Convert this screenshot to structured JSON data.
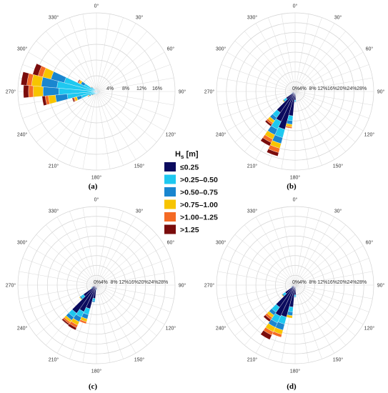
{
  "figure": {
    "legend": {
      "title_main": "H",
      "title_sub": "s",
      "title_unit": " [m]",
      "colors": [
        "#0b0b5e",
        "#1ec8f0",
        "#1a86cf",
        "#f7c400",
        "#f46a25",
        "#7a0c0c"
      ],
      "icon_names": [
        "legend-swatch-le025",
        "legend-swatch-025-050",
        "legend-swatch-050-075",
        "legend-swatch-075-100",
        "legend-swatch-100-125",
        "legend-swatch-gt125"
      ]
    }
  },
  "chart_data": [
    {
      "type": "polar-stacked-bar",
      "panel": "(a)",
      "angle_labels": [
        "0°",
        "30°",
        "60°",
        "90°",
        "120°",
        "150°",
        "180°",
        "210°",
        "240°",
        "270°",
        "300°",
        "330°"
      ],
      "radial_ticks": [
        "4%",
        "8%",
        "12%",
        "16%"
      ],
      "rmax": 20,
      "legend_labels": [
        "≤0.25",
        ">0.25–0.50",
        ">0.50–0.75",
        ">0.75–1.00",
        ">1.00–1.25",
        ">1.25"
      ],
      "sectors": [
        {
          "dir": 290,
          "values": [
            0.5,
            8.0,
            3.5,
            2.2,
            1.2,
            1.4
          ]
        },
        {
          "dir": 280,
          "values": [
            0.6,
            9.5,
            4.0,
            2.5,
            1.2,
            1.5
          ]
        },
        {
          "dir": 270,
          "values": [
            0.6,
            9.0,
            4.0,
            2.5,
            1.2,
            1.3
          ]
        },
        {
          "dir": 260,
          "values": [
            0.5,
            7.0,
            3.0,
            1.8,
            0.8,
            0.8
          ]
        },
        {
          "dir": 250,
          "values": [
            0.5,
            3.5,
            1.2,
            0.6,
            0.3,
            0.3
          ]
        },
        {
          "dir": 300,
          "values": [
            0.4,
            3.0,
            1.0,
            0.5,
            0.2,
            0.2
          ]
        },
        {
          "dir": 240,
          "values": [
            0.4,
            1.3,
            0.4,
            0.2,
            0.1,
            0.1
          ]
        },
        {
          "dir": 310,
          "values": [
            0.3,
            1.0,
            0.3,
            0.1,
            0.1,
            0.0
          ]
        },
        {
          "dir": 230,
          "values": [
            0.3,
            0.8,
            0.3,
            0.1,
            0.0,
            0.0
          ]
        },
        {
          "dir": 220,
          "values": [
            0.3,
            0.5,
            0.2,
            0.1,
            0.0,
            0.0
          ]
        },
        {
          "dir": 210,
          "values": [
            0.3,
            0.4,
            0.1,
            0.0,
            0.0,
            0.0
          ]
        },
        {
          "dir": 200,
          "values": [
            0.3,
            0.4,
            0.1,
            0.0,
            0.0,
            0.0
          ]
        },
        {
          "dir": 190,
          "values": [
            0.3,
            0.3,
            0.1,
            0.0,
            0.0,
            0.0
          ]
        },
        {
          "dir": 180,
          "values": [
            0.3,
            0.3,
            0.1,
            0.0,
            0.0,
            0.0
          ]
        },
        {
          "dir": 170,
          "values": [
            0.3,
            0.3,
            0.0,
            0.0,
            0.0,
            0.0
          ]
        },
        {
          "dir": 320,
          "values": [
            0.3,
            0.3,
            0.1,
            0.0,
            0.0,
            0.0
          ]
        },
        {
          "dir": 330,
          "values": [
            0.3,
            0.2,
            0.0,
            0.0,
            0.0,
            0.0
          ]
        },
        {
          "dir": 340,
          "values": [
            0.3,
            0.2,
            0.0,
            0.0,
            0.0,
            0.0
          ]
        },
        {
          "dir": 0,
          "values": [
            0.3,
            0.2,
            0.0,
            0.0,
            0.0,
            0.0
          ]
        },
        {
          "dir": 30,
          "values": [
            0.3,
            0.2,
            0.0,
            0.0,
            0.0,
            0.0
          ]
        },
        {
          "dir": 60,
          "values": [
            0.3,
            0.2,
            0.0,
            0.0,
            0.0,
            0.0
          ]
        },
        {
          "dir": 90,
          "values": [
            0.4,
            0.4,
            0.1,
            0.0,
            0.0,
            0.0
          ]
        },
        {
          "dir": 120,
          "values": [
            0.3,
            0.3,
            0.1,
            0.0,
            0.0,
            0.0
          ]
        },
        {
          "dir": 150,
          "values": [
            0.3,
            0.3,
            0.0,
            0.0,
            0.0,
            0.0
          ]
        }
      ]
    },
    {
      "type": "polar-stacked-bar",
      "panel": "(b)",
      "angle_labels": [
        "0°",
        "30°",
        "60°",
        "90°",
        "120°",
        "150°",
        "180°",
        "210°",
        "240°",
        "270°",
        "300°",
        "330°"
      ],
      "radial_ticks": [
        "4%",
        "8%",
        "12%",
        "16%",
        "20%",
        "24%",
        "28%"
      ],
      "rmax": 32,
      "legend_labels": [
        "≤0.25",
        ">0.25–0.50",
        ">0.50–0.75",
        ">0.75–1.00",
        ">1.00–1.25",
        ">1.25"
      ],
      "sectors": [
        {
          "dir": 200,
          "values": [
            16.0,
            3.5,
            2.5,
            2.0,
            1.8,
            1.5
          ]
        },
        {
          "dir": 210,
          "values": [
            13.5,
            3.5,
            2.5,
            2.0,
            1.5,
            1.5
          ]
        },
        {
          "dir": 220,
          "values": [
            10.5,
            2.5,
            1.5,
            1.2,
            0.8,
            0.8
          ]
        },
        {
          "dir": 190,
          "values": [
            10.0,
            2.0,
            1.5,
            1.0,
            0.6,
            0.0
          ]
        },
        {
          "dir": 230,
          "values": [
            4.5,
            1.0,
            0.5,
            0.3,
            0.0,
            0.0
          ]
        },
        {
          "dir": 180,
          "values": [
            3.5,
            0.5,
            0.3,
            0.0,
            0.0,
            0.0
          ]
        },
        {
          "dir": 240,
          "values": [
            1.2,
            0.3,
            0.0,
            0.0,
            0.0,
            0.0
          ]
        },
        {
          "dir": 170,
          "values": [
            1.0,
            0.2,
            0.0,
            0.0,
            0.0,
            0.0
          ]
        }
      ]
    },
    {
      "type": "polar-stacked-bar",
      "panel": "(c)",
      "angle_labels": [
        "0°",
        "30°",
        "60°",
        "90°",
        "120°",
        "150°",
        "180°",
        "210°",
        "240°",
        "270°",
        "300°",
        "330°"
      ],
      "radial_ticks": [
        "4%",
        "8%",
        "12%",
        "16%",
        "20%",
        "24%",
        "28%"
      ],
      "rmax": 32,
      "legend_labels": [
        "≤0.25",
        ">0.25–0.50",
        ">0.50–0.75",
        ">0.75–1.00",
        ">1.00–1.25",
        ">1.25"
      ],
      "sectors": [
        {
          "dir": 220,
          "values": [
            14.0,
            2.0,
            1.5,
            1.0,
            0.8,
            0.6
          ]
        },
        {
          "dir": 210,
          "values": [
            12.0,
            2.5,
            2.0,
            1.5,
            1.2,
            1.0
          ]
        },
        {
          "dir": 200,
          "values": [
            10.0,
            2.5,
            1.8,
            1.2,
            0.8,
            0.0
          ]
        },
        {
          "dir": 230,
          "values": [
            6.5,
            1.2,
            0.6,
            0.3,
            0.0,
            0.0
          ]
        },
        {
          "dir": 190,
          "values": [
            5.5,
            1.0,
            0.5,
            0.0,
            0.0,
            0.0
          ]
        },
        {
          "dir": 240,
          "values": [
            2.0,
            0.4,
            0.0,
            0.0,
            0.0,
            0.0
          ]
        },
        {
          "dir": 180,
          "values": [
            1.8,
            0.3,
            0.0,
            0.0,
            0.0,
            0.0
          ]
        }
      ]
    },
    {
      "type": "polar-stacked-bar",
      "panel": "(d)",
      "angle_labels": [
        "0°",
        "30°",
        "60°",
        "90°",
        "120°",
        "150°",
        "180°",
        "210°",
        "240°",
        "270°",
        "300°",
        "330°"
      ],
      "radial_ticks": [
        "4%",
        "8%",
        "12%",
        "16%",
        "20%",
        "24%",
        "28%"
      ],
      "rmax": 32,
      "legend_labels": [
        "≤0.25",
        ">0.25–0.50",
        ">0.50–0.75",
        ">0.75–1.00",
        ">1.00–1.25",
        ">1.25"
      ],
      "sectors": [
        {
          "dir": 210,
          "values": [
            14.0,
            3.0,
            2.0,
            2.0,
            1.5,
            2.0
          ]
        },
        {
          "dir": 200,
          "values": [
            13.5,
            3.0,
            2.5,
            1.8,
            1.2,
            0.0
          ]
        },
        {
          "dir": 220,
          "values": [
            11.0,
            2.5,
            1.5,
            1.2,
            1.0,
            1.0
          ]
        },
        {
          "dir": 190,
          "values": [
            9.0,
            2.0,
            1.5,
            1.0,
            0.0,
            0.0
          ]
        },
        {
          "dir": 230,
          "values": [
            5.0,
            1.0,
            0.5,
            0.3,
            0.0,
            0.0
          ]
        },
        {
          "dir": 180,
          "values": [
            4.0,
            0.6,
            0.3,
            0.0,
            0.0,
            0.0
          ]
        },
        {
          "dir": 240,
          "values": [
            1.5,
            0.3,
            0.0,
            0.0,
            0.0,
            0.0
          ]
        },
        {
          "dir": 170,
          "values": [
            1.2,
            0.2,
            0.0,
            0.0,
            0.0,
            0.0
          ]
        }
      ]
    }
  ]
}
